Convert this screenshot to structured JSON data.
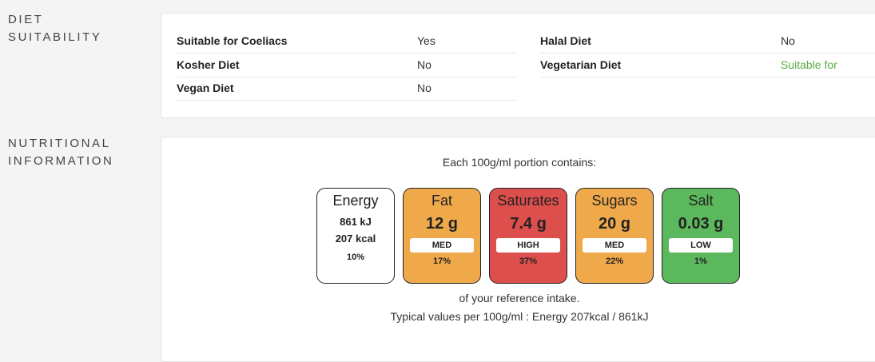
{
  "colors": {
    "med": "#f0a94a",
    "high": "#dc4f4c",
    "low": "#5cb85c",
    "energy": "#ffffff",
    "suitable_text": "#5aac44"
  },
  "diet_section": {
    "label_line1": "DIET",
    "label_line2": "SUITABILITY",
    "rows": [
      {
        "label": "Suitable for Coeliacs",
        "value": "Yes"
      },
      {
        "label": "Halal Diet",
        "value": "No"
      },
      {
        "label": "Kosher Diet",
        "value": "No"
      },
      {
        "label": "Vegetarian Diet",
        "value": "Suitable for"
      },
      {
        "label": "Vegan Diet",
        "value": "No"
      }
    ]
  },
  "nutrition_section": {
    "label_line1": "NUTRITIONAL",
    "label_line2": "INFORMATION",
    "portion_text": "Each 100g/ml portion contains:",
    "energy": {
      "name": "Energy",
      "kj": "861 kJ",
      "kcal": "207 kcal",
      "percent": "10%"
    },
    "tiles": [
      {
        "name": "Fat",
        "value": "12 g",
        "level": "MED",
        "percent": "17%"
      },
      {
        "name": "Saturates",
        "value": "7.4 g",
        "level": "HIGH",
        "percent": "37%"
      },
      {
        "name": "Sugars",
        "value": "20 g",
        "level": "MED",
        "percent": "22%"
      },
      {
        "name": "Salt",
        "value": "0.03 g",
        "level": "LOW",
        "percent": "1%"
      }
    ],
    "reference_text": "of your reference intake.",
    "typical_text": "Typical values per 100g/ml : Energy 207kcal / 861kJ"
  }
}
